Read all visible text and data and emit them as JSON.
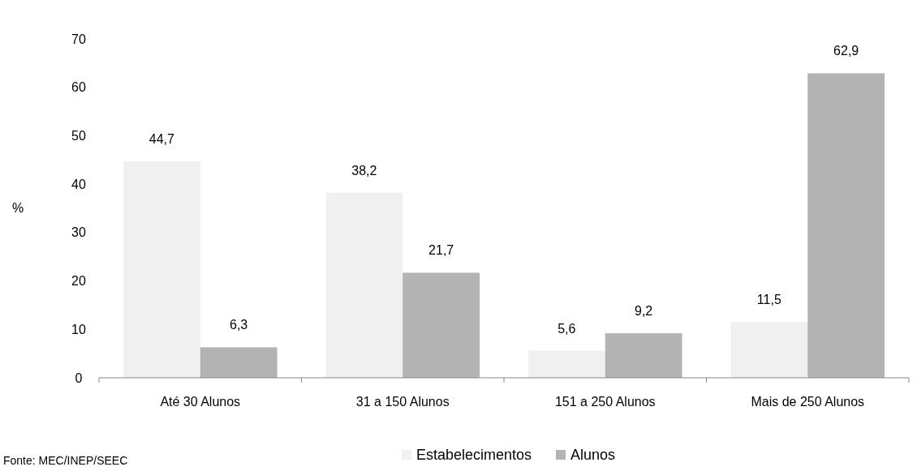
{
  "chart_data": {
    "type": "bar",
    "ylabel": "%",
    "categories": [
      "Até 30 Alunos",
      "31 a 150 Alunos",
      "151 a 250 Alunos",
      "Mais de 250 Alunos"
    ],
    "series": [
      {
        "name": "Estabelecimentos",
        "color": "#f0f0f0",
        "values": [
          44.7,
          38.2,
          5.6,
          11.5
        ],
        "value_labels": [
          "44,7",
          "38,2",
          "5,6",
          "11,5"
        ]
      },
      {
        "name": "Alunos",
        "color": "#b3b3b3",
        "values": [
          6.3,
          21.7,
          9.2,
          62.9
        ],
        "value_labels": [
          "6,3",
          "21,7",
          "9,2",
          "62,9"
        ]
      }
    ],
    "ylim": [
      0,
      70
    ],
    "yticks": [
      0,
      10,
      20,
      30,
      40,
      50,
      60,
      70
    ],
    "grid": false,
    "legend": "bottom",
    "annotations": [
      "Fonte: MEC/INEP/SEEC"
    ]
  }
}
